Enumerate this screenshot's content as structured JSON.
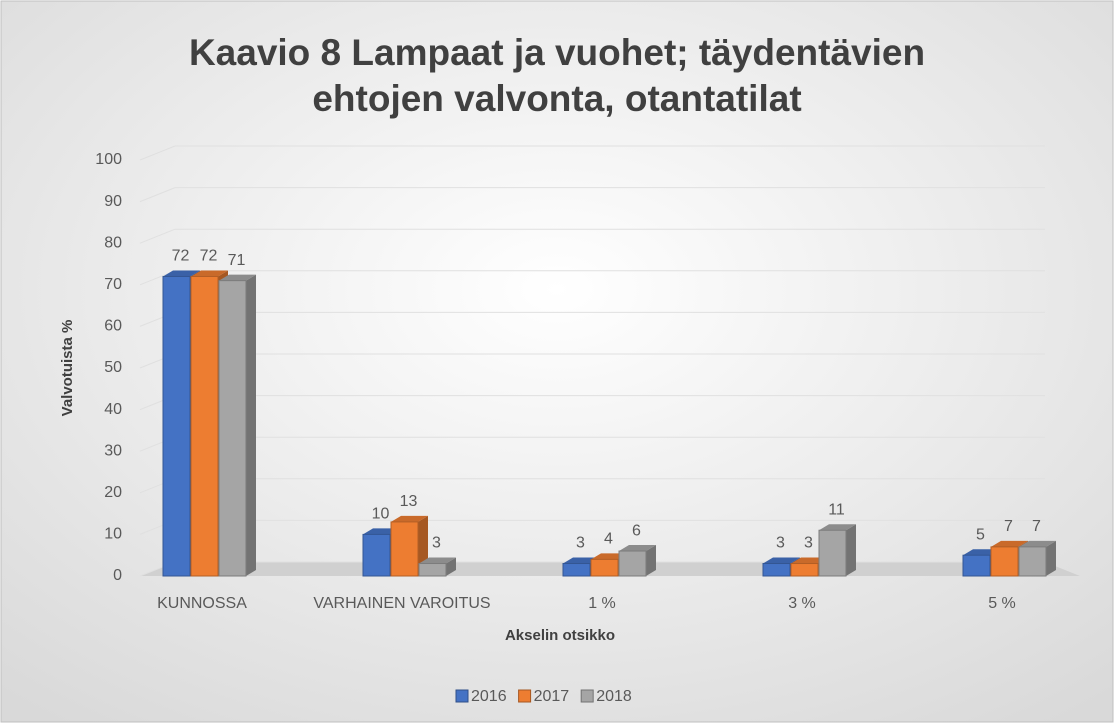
{
  "chart_data": {
    "type": "bar",
    "title": "Kaavio 8 Lampaat ja vuohet; täydentävien ehtojen valvonta, otantatilat",
    "xlabel": "Akselin otsikko",
    "ylabel": "Valvotuista %",
    "categories": [
      "KUNNOSSA",
      "VARHAINEN VAROITUS",
      "1 %",
      "3 %",
      "5 %"
    ],
    "series": [
      {
        "name": "2016",
        "color": "#4472c4",
        "values": [
          72,
          10,
          3,
          3,
          5
        ]
      },
      {
        "name": "2017",
        "color": "#ed7d31",
        "values": [
          72,
          13,
          4,
          3,
          7
        ]
      },
      {
        "name": "2018",
        "color": "#a5a5a5",
        "values": [
          71,
          3,
          6,
          11,
          7
        ]
      }
    ],
    "ylim": [
      0,
      100
    ],
    "yticks": [
      0,
      10,
      20,
      30,
      40,
      50,
      60,
      70,
      80,
      90,
      100
    ],
    "grid": true,
    "legend": "bottom"
  }
}
